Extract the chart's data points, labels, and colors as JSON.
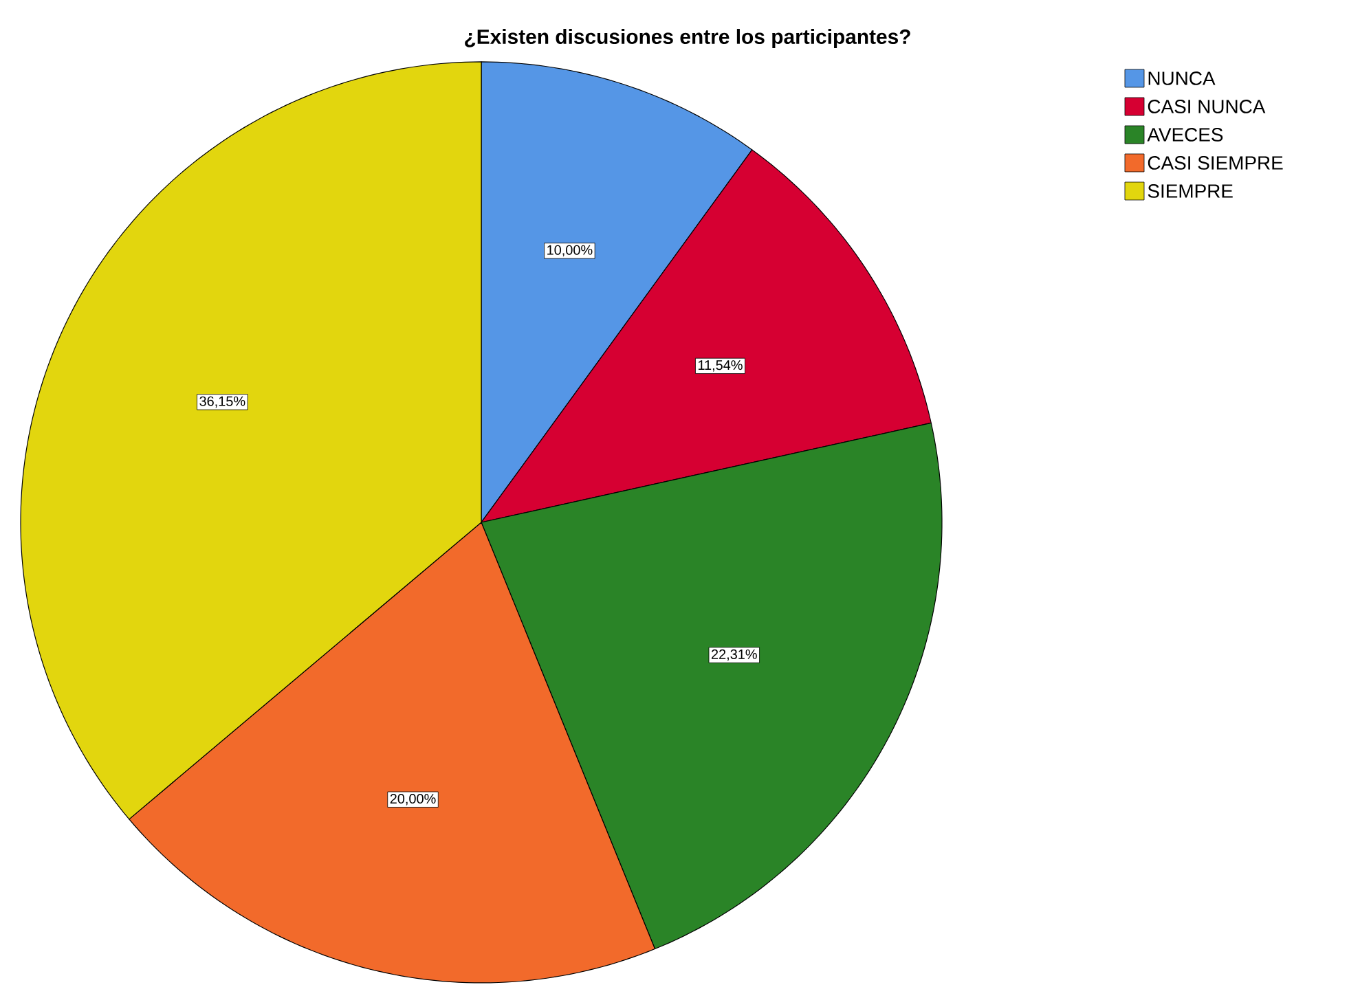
{
  "chart_data": {
    "type": "pie",
    "title": "¿Existen discusiones entre los participantes?",
    "categories": [
      "NUNCA",
      "CASI NUNCA",
      "AVECES",
      "CASI SIEMPRE",
      "SIEMPRE"
    ],
    "values": [
      10.0,
      11.54,
      22.31,
      20.0,
      36.15
    ],
    "value_labels": [
      "10,00%",
      "11,54%",
      "22,31%",
      "20,00%",
      "36,15%"
    ],
    "colors": [
      "#5596e6",
      "#d60032",
      "#2a8427",
      "#f26a2b",
      "#e2d60e"
    ],
    "legend": "top right"
  }
}
